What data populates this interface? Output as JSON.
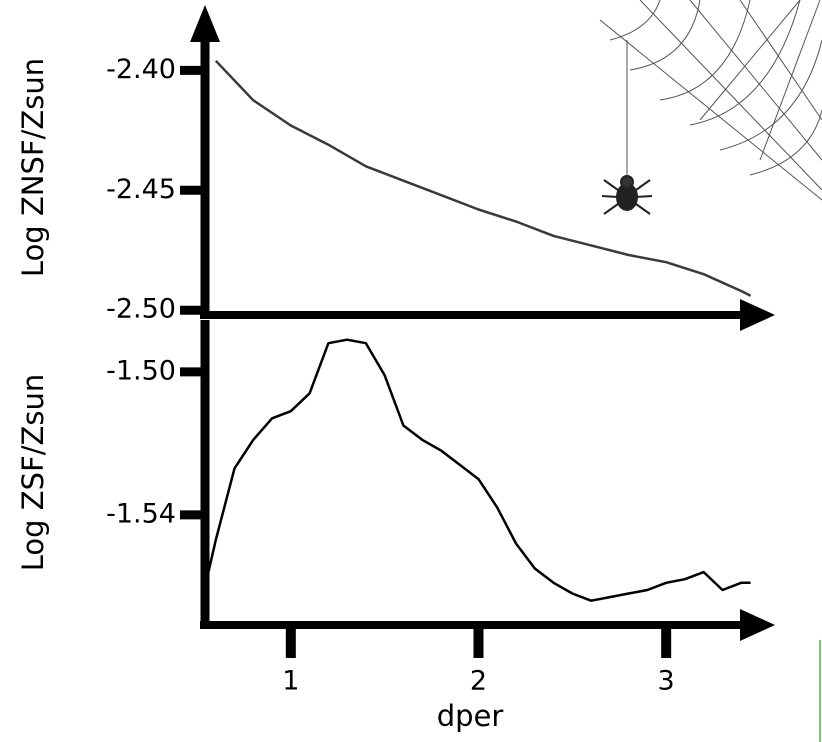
{
  "chart_data": [
    {
      "type": "line",
      "ylabel": "Log ZNSF/Zsun",
      "x": [
        0.6,
        0.8,
        1.0,
        1.2,
        1.4,
        1.6,
        1.8,
        2.0,
        2.2,
        2.4,
        2.6,
        2.8,
        3.0,
        3.2,
        3.4,
        3.45
      ],
      "series": [
        {
          "color": "#3a3a3a",
          "values": [
            -2.396,
            -2.4125,
            -2.423,
            -2.431,
            -2.44,
            -2.446,
            -2.452,
            -2.458,
            -2.463,
            -2.469,
            -2.473,
            -2.477,
            -2.48,
            -2.485,
            -2.492,
            -2.494
          ]
        }
      ],
      "xlim": [
        0.516,
        3.58
      ],
      "ylim": [
        -2.502,
        -2.379
      ],
      "yticks": [
        {
          "value": -2.4,
          "label": "-2.40"
        },
        {
          "value": -2.45,
          "label": "-2.45"
        },
        {
          "value": -2.5,
          "label": "-2.50"
        }
      ]
    },
    {
      "type": "line",
      "ylabel": "Log ZSF/Zsun",
      "xlabel": "dper",
      "x": [
        0.55,
        0.6,
        0.7,
        0.8,
        0.9,
        1.0,
        1.1,
        1.2,
        1.3,
        1.4,
        1.5,
        1.6,
        1.7,
        1.8,
        1.9,
        2.0,
        2.1,
        2.2,
        2.3,
        2.4,
        2.5,
        2.6,
        2.7,
        2.8,
        2.9,
        3.0,
        3.1,
        3.2,
        3.3,
        3.4,
        3.45
      ],
      "series": [
        {
          "color": "#000000",
          "values": [
            -1.5585,
            -1.547,
            -1.527,
            -1.519,
            -1.513,
            -1.511,
            -1.506,
            -1.492,
            -1.491,
            -1.492,
            -1.501,
            -1.515,
            -1.519,
            -1.522,
            -1.526,
            -1.53,
            -1.538,
            -1.548,
            -1.555,
            -1.559,
            -1.562,
            -1.564,
            -1.563,
            -1.562,
            -1.561,
            -1.559,
            -1.558,
            -1.556,
            -1.561,
            -1.559,
            -1.559
          ]
        }
      ],
      "xlim": [
        0.516,
        3.58
      ],
      "ylim": [
        -1.5708,
        -1.4855
      ],
      "xticks": [
        1,
        2,
        3
      ],
      "yticks": [
        {
          "value": -1.5,
          "label": "-1.50"
        },
        {
          "value": -1.54,
          "label": "-1.54"
        }
      ]
    }
  ]
}
